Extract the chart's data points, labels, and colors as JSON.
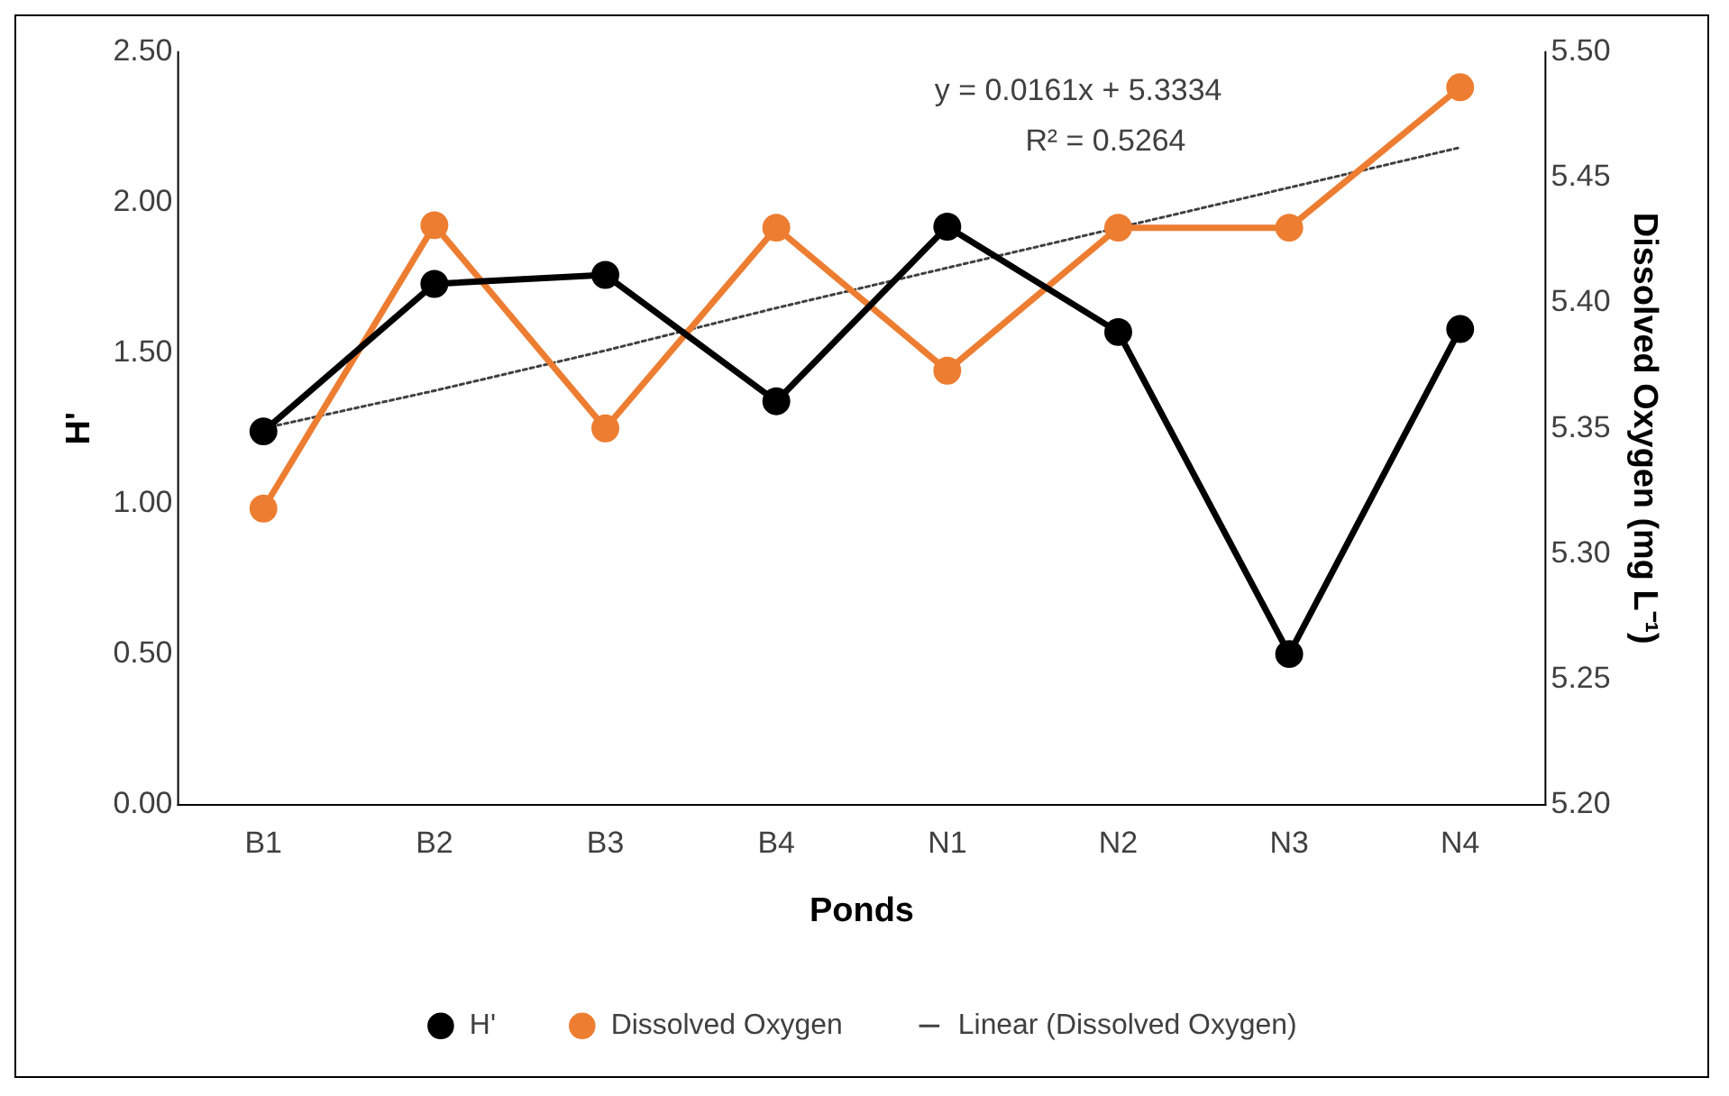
{
  "chart_data": {
    "type": "line",
    "xlabel": "Ponds",
    "ylabel": "H'",
    "y2label": "Dissolved Oxygen (mg L⁻¹)",
    "categories": [
      "B1",
      "B2",
      "B3",
      "B4",
      "N1",
      "N2",
      "N3",
      "N4"
    ],
    "series": [
      {
        "name": "H'",
        "color": "#000000",
        "values": [
          1.24,
          1.73,
          1.76,
          1.34,
          1.92,
          1.57,
          0.5,
          1.58
        ],
        "marker": "circle",
        "line_style": "solid"
      },
      {
        "name": "Dissolved Oxygen",
        "color": "#ed7d31",
        "axis": "y2",
        "values": [
          5.318,
          5.431,
          5.35,
          5.43,
          5.373,
          5.43,
          5.43,
          5.486
        ],
        "marker": "circle",
        "line_style": "solid"
      },
      {
        "name": "Linear (Dissolved Oxygen)",
        "color": "#404040",
        "axis": "y2",
        "values": [
          5.35,
          5.365,
          5.381,
          5.398,
          5.414,
          5.43,
          5.446,
          5.462
        ],
        "marker": "none",
        "line_style": "dotted"
      }
    ],
    "ylim": [
      0,
      2.5
    ],
    "yticks": [
      {
        "value": 0,
        "label": "0.00"
      },
      {
        "value": 0.5,
        "label": "0.50"
      },
      {
        "value": 1,
        "label": "1.00"
      },
      {
        "value": 1.5,
        "label": "1.50"
      },
      {
        "value": 2,
        "label": "2.00"
      },
      {
        "value": 2.5,
        "label": "2.50"
      }
    ],
    "y2lim": [
      5.2,
      5.5
    ],
    "y2ticks": [
      {
        "value": 5.2,
        "label": "5.20"
      },
      {
        "value": 5.25,
        "label": "5.25"
      },
      {
        "value": 5.3,
        "label": "5.30"
      },
      {
        "value": 5.35,
        "label": "5.35"
      },
      {
        "value": 5.4,
        "label": "5.40"
      },
      {
        "value": 5.45,
        "label": "5.45"
      },
      {
        "value": 5.5,
        "label": "5.50"
      }
    ],
    "annotations": [
      "y = 0.0161x + 5.3334",
      "R² = 0.5264"
    ],
    "grid": false,
    "legend": "bottom"
  }
}
